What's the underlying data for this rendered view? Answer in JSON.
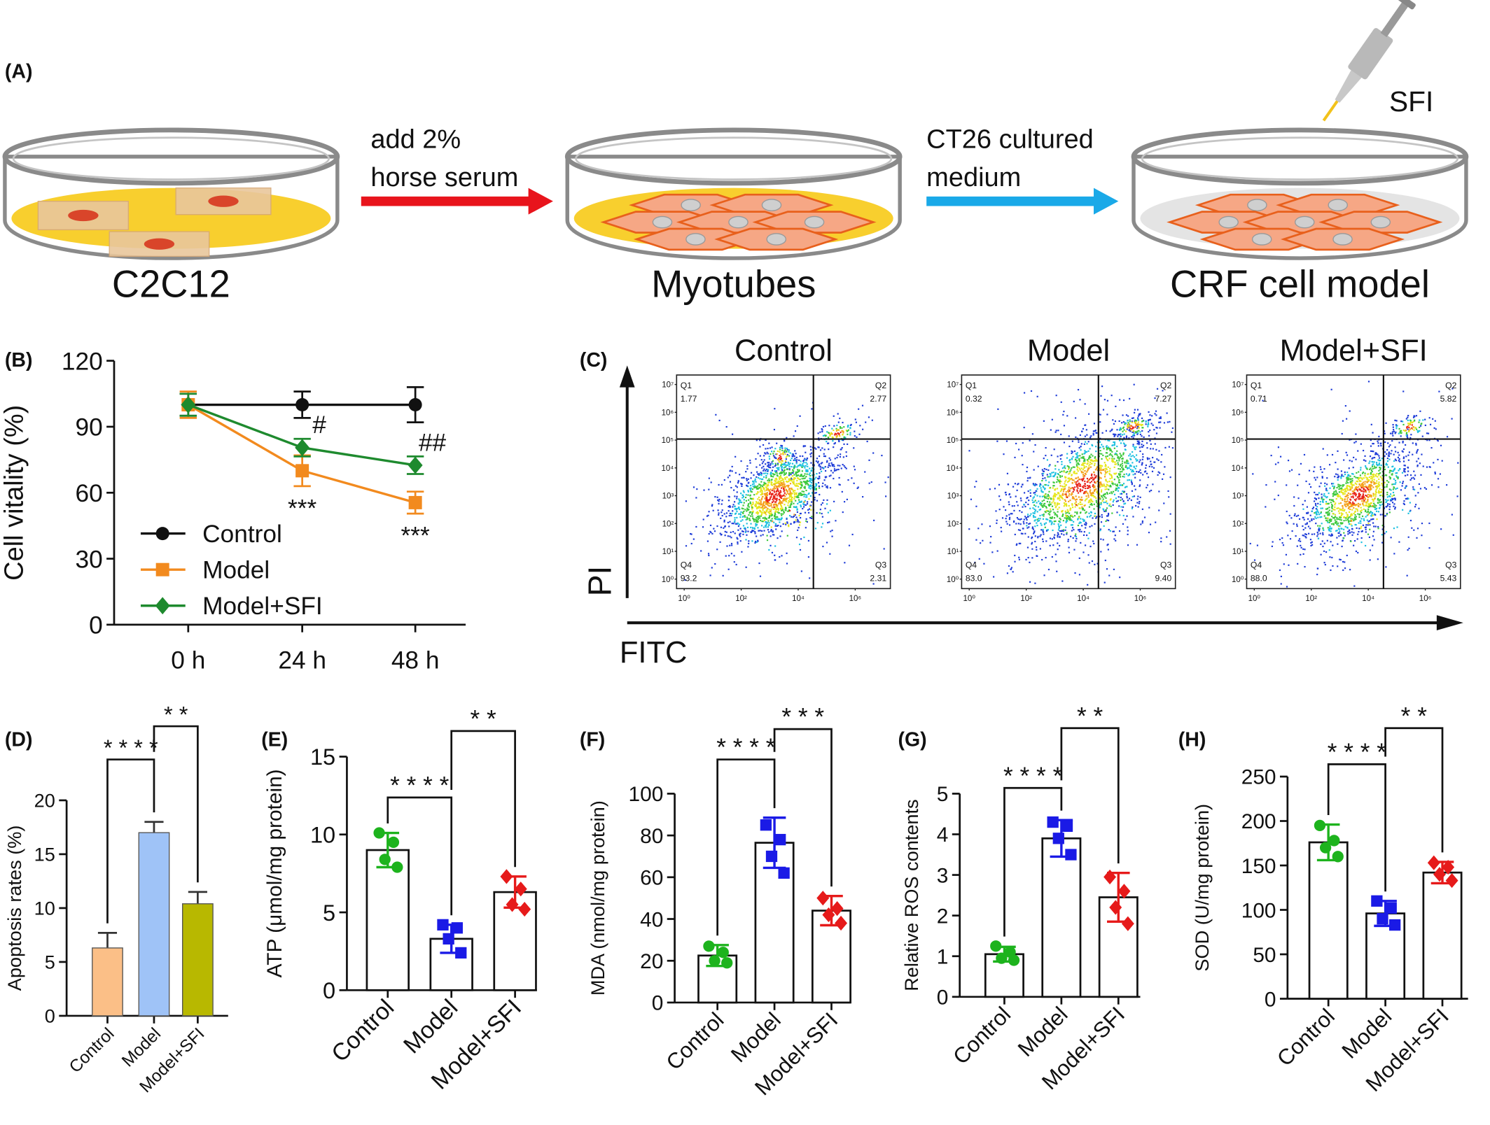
{
  "diagram": {
    "panel": "(A)",
    "dishes": [
      {
        "label": "C2C12"
      },
      {
        "label": "Myotubes"
      },
      {
        "label": "CRF cell model"
      }
    ],
    "arrows": [
      {
        "lines": [
          "add 2%",
          "horse serum"
        ]
      },
      {
        "lines": [
          "CT26 cultured",
          "medium"
        ]
      }
    ],
    "drug": "SFI"
  },
  "flow": {
    "panel": "(C)",
    "y_axis": "PI",
    "x_axis": "FITC",
    "yticks": [
      "10⁰",
      "10¹",
      "10²",
      "10³",
      "10⁴",
      "10⁵",
      "10⁶",
      "10⁷"
    ],
    "xticks": [
      "10⁰",
      "10²",
      "10⁴",
      "10⁶"
    ],
    "plots": [
      {
        "title": "Control",
        "quadrants": [
          {
            "name": "Q1",
            "value": "1.77"
          },
          {
            "name": "Q2",
            "value": "2.77"
          },
          {
            "name": "Q4",
            "value": "93.2"
          },
          {
            "name": "Q3",
            "value": "2.31"
          }
        ]
      },
      {
        "title": "Model",
        "quadrants": [
          {
            "name": "Q1",
            "value": "0.32"
          },
          {
            "name": "Q2",
            "value": "7.27"
          },
          {
            "name": "Q4",
            "value": "83.0"
          },
          {
            "name": "Q3",
            "value": "9.40"
          }
        ]
      },
      {
        "title": "Model+SFI",
        "quadrants": [
          {
            "name": "Q1",
            "value": "0.71"
          },
          {
            "name": "Q2",
            "value": "5.82"
          },
          {
            "name": "Q4",
            "value": "88.0"
          },
          {
            "name": "Q3",
            "value": "5.43"
          }
        ]
      }
    ]
  },
  "chart_data": [
    {
      "type": "line",
      "panel": "(B)",
      "ylabel": "Cell vitality (%)",
      "categories": [
        "0 h",
        "24 h",
        "48 h"
      ],
      "ylim": [
        0,
        120
      ],
      "yticks": [
        0,
        30,
        60,
        90,
        120
      ],
      "series": [
        {
          "name": "Control",
          "color": "#111111",
          "marker": "circle",
          "values": [
            100,
            100,
            100
          ],
          "errors": [
            5,
            6,
            8
          ]
        },
        {
          "name": "Model",
          "color": "#f28a1e",
          "marker": "square",
          "values": [
            100,
            70,
            55.5
          ],
          "errors": [
            6,
            7,
            5
          ],
          "marks": [
            null,
            "***",
            "***"
          ]
        },
        {
          "name": "Model+SFI",
          "color": "#1e8a2e",
          "marker": "diamond",
          "values": [
            100,
            80.5,
            72.5
          ],
          "errors": [
            5,
            4,
            4
          ],
          "marks": [
            null,
            "#",
            "##"
          ]
        }
      ]
    },
    {
      "type": "bar",
      "panel": "(D)",
      "ylabel": "Apoptosis rates (%)",
      "categories": [
        "Control",
        "Model",
        "Model+SFI"
      ],
      "values": [
        6.3,
        17,
        10.4
      ],
      "errors": [
        1.4,
        1,
        1.1
      ],
      "colors": [
        "#fbbf87",
        "#9fc3f7",
        "#b8b800"
      ],
      "ylim": [
        0,
        20
      ],
      "yticks": [
        0,
        5,
        10,
        15,
        20
      ],
      "brackets": [
        {
          "from": 0,
          "to": 1,
          "label": "* * * *"
        },
        {
          "from": 1,
          "to": 2,
          "label": "* *"
        }
      ]
    },
    {
      "type": "scatter_bar",
      "panel": "(E)",
      "ylabel": "ATP (μmol/mg protein)",
      "categories": [
        "Control",
        "Model",
        "Model+SFI"
      ],
      "values": [
        9,
        3.3,
        6.3
      ],
      "errors": [
        1.1,
        0.9,
        1
      ],
      "points": [
        [
          10.1,
          9.5,
          8.4,
          7.9
        ],
        [
          4.2,
          4.0,
          3.3,
          2.4
        ],
        [
          7.3,
          6.5,
          5.5,
          5.2
        ]
      ],
      "colors": [
        "#1db31d",
        "#1a1ae6",
        "#e61a1a"
      ],
      "markers": [
        "circle",
        "square",
        "diamond"
      ],
      "ylim": [
        0,
        15
      ],
      "yticks": [
        0,
        5,
        10,
        15
      ],
      "brackets": [
        {
          "from": 0,
          "to": 1,
          "label": "* * * *"
        },
        {
          "from": 1,
          "to": 2,
          "label": "* *"
        }
      ]
    },
    {
      "type": "scatter_bar",
      "panel": "(F)",
      "ylabel": "MDA (nmol/mg protein)",
      "categories": [
        "Control",
        "Model",
        "Model+SFI"
      ],
      "values": [
        22.5,
        76.5,
        44
      ],
      "errors": [
        5,
        12,
        7
      ],
      "points": [
        [
          27,
          24,
          20,
          19
        ],
        [
          85,
          78,
          70,
          62
        ],
        [
          50,
          45,
          42,
          38
        ]
      ],
      "colors": [
        "#1db31d",
        "#1a1ae6",
        "#e61a1a"
      ],
      "markers": [
        "circle",
        "square",
        "diamond"
      ],
      "ylim": [
        0,
        100
      ],
      "yticks": [
        0,
        20,
        40,
        60,
        80,
        100
      ],
      "brackets": [
        {
          "from": 0,
          "to": 1,
          "label": "* * * *"
        },
        {
          "from": 1,
          "to": 2,
          "label": "* * *"
        }
      ]
    },
    {
      "type": "scatter_bar",
      "panel": "(G)",
      "ylabel": "Relative ROS contents",
      "categories": [
        "Control",
        "Model",
        "Model+SFI"
      ],
      "values": [
        1.05,
        3.9,
        2.45
      ],
      "errors": [
        0.18,
        0.45,
        0.6
      ],
      "points": [
        [
          1.25,
          1.1,
          0.95,
          0.9
        ],
        [
          4.3,
          4.2,
          3.9,
          3.5
        ],
        [
          2.95,
          2.6,
          2.2,
          1.8
        ]
      ],
      "colors": [
        "#1db31d",
        "#1a1ae6",
        "#e61a1a"
      ],
      "markers": [
        "circle",
        "square",
        "diamond"
      ],
      "ylim": [
        0,
        5
      ],
      "yticks": [
        0,
        1,
        2,
        3,
        4,
        5
      ],
      "brackets": [
        {
          "from": 0,
          "to": 1,
          "label": "* * * *"
        },
        {
          "from": 1,
          "to": 2,
          "label": "* *"
        }
      ]
    },
    {
      "type": "scatter_bar",
      "panel": "(H)",
      "ylabel": "SOD (U/mg protein)",
      "categories": [
        "Control",
        "Model",
        "Model+SFI"
      ],
      "values": [
        176,
        96,
        142
      ],
      "errors": [
        20,
        14,
        12
      ],
      "points": [
        [
          195,
          178,
          170,
          160
        ],
        [
          110,
          102,
          90,
          83
        ],
        [
          153,
          148,
          140,
          133
        ]
      ],
      "colors": [
        "#1db31d",
        "#1a1ae6",
        "#e61a1a"
      ],
      "markers": [
        "circle",
        "square",
        "diamond"
      ],
      "ylim": [
        0,
        250
      ],
      "yticks": [
        0,
        50,
        100,
        150,
        200,
        250
      ],
      "brackets": [
        {
          "from": 0,
          "to": 1,
          "label": "* * * *"
        },
        {
          "from": 1,
          "to": 2,
          "label": "* *"
        }
      ]
    }
  ]
}
